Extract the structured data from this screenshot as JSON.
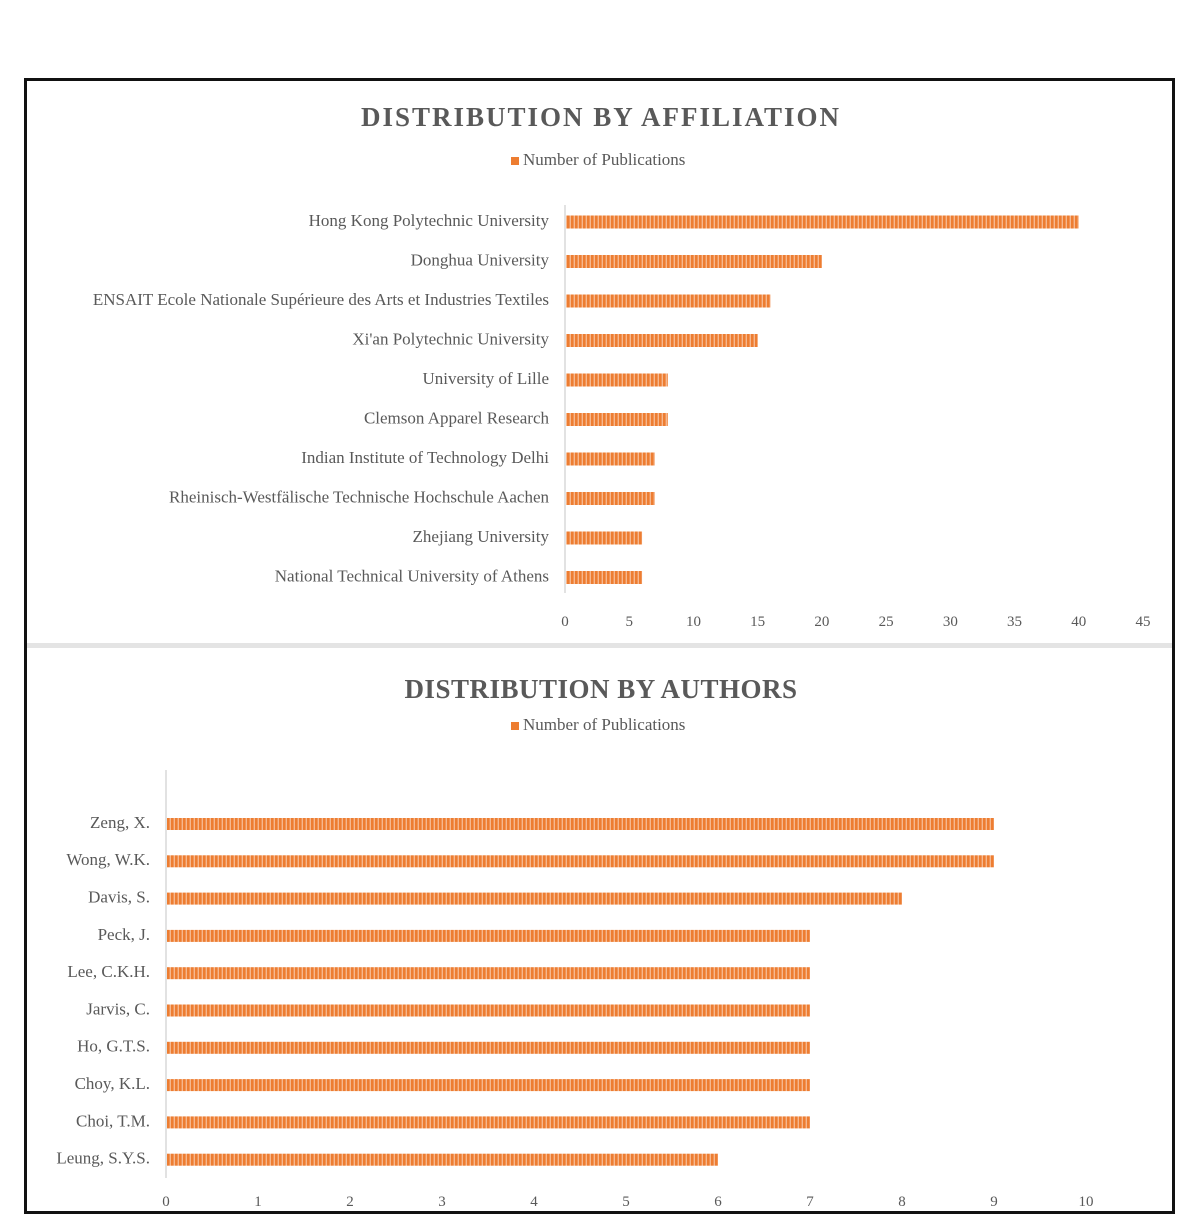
{
  "colors": {
    "bar": "#ed7d31",
    "bar_stripe": "#f6b88f",
    "text": "#595959",
    "axis": "#d9d9d9"
  },
  "chart_data": [
    {
      "type": "bar",
      "orientation": "horizontal",
      "title": "DISTRIBUTION  BY AFFILIATION",
      "legend": [
        "Number of Publications"
      ],
      "legend_position": "top",
      "categories": [
        "Hong Kong Polytechnic University",
        "Donghua University",
        "ENSAIT Ecole Nationale Supérieure des Arts et Industries Textiles",
        "Xi'an Polytechnic University",
        "University of Lille",
        "Clemson Apparel Research",
        "Indian Institute of Technology Delhi",
        "Rheinisch-Westfälische Technische Hochschule Aachen",
        "Zhejiang University",
        "National Technical University of Athens"
      ],
      "series": [
        {
          "name": "Number of Publications",
          "values": [
            40,
            20,
            16,
            15,
            8,
            8,
            7,
            7,
            6,
            6
          ]
        }
      ],
      "xlim": [
        0,
        45
      ],
      "xticks": [
        "0",
        "5",
        "10",
        "15",
        "20",
        "25",
        "30",
        "35",
        "40",
        "45"
      ],
      "grid": false
    },
    {
      "type": "bar",
      "orientation": "horizontal",
      "title": "DISTRIBUTION BY AUTHORS",
      "legend": [
        "Number of Publications"
      ],
      "legend_position": "top",
      "categories": [
        "Zeng, X.",
        "Wong, W.K.",
        "Davis, S.",
        "Peck, J.",
        "Lee, C.K.H.",
        "Jarvis, C.",
        "Ho, G.T.S.",
        "Choy, K.L.",
        "Choi, T.M.",
        "Leung, S.Y.S."
      ],
      "series": [
        {
          "name": "Number of Publications",
          "values": [
            9,
            9,
            8,
            7,
            7,
            7,
            7,
            7,
            7,
            6
          ]
        }
      ],
      "xlim": [
        0,
        10
      ],
      "xticks": [
        "0",
        "1",
        "2",
        "3",
        "4",
        "5",
        "6",
        "7",
        "8",
        "9",
        "10"
      ],
      "grid": false
    }
  ]
}
